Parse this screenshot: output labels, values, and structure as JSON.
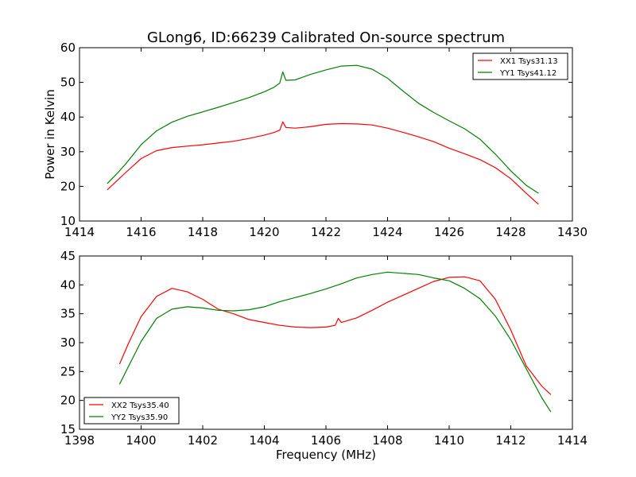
{
  "figure": {
    "title": "GLong6, ID:66239 Calibrated On-source spectrum",
    "ylabel": "Power in Kelvin",
    "xlabel": "Frequency (MHz)"
  },
  "colors": {
    "red": "#ff0000",
    "green": "#008000"
  },
  "chart_data": [
    {
      "type": "line",
      "title": "GLong6, ID:66239 Calibrated On-source spectrum",
      "xlabel": "",
      "ylabel": "Power in Kelvin",
      "xlim": [
        1414,
        1430
      ],
      "ylim": [
        10,
        60
      ],
      "xticks": [
        1414,
        1416,
        1418,
        1420,
        1422,
        1424,
        1426,
        1428,
        1430
      ],
      "yticks": [
        10,
        20,
        30,
        40,
        50,
        60
      ],
      "grid": false,
      "legend_position": "top-right",
      "series": [
        {
          "name": "XX1 Tsys31.13",
          "color": "#ff0000",
          "x": [
            1414.9,
            1415.2,
            1415.5,
            1416.0,
            1416.5,
            1417.0,
            1417.5,
            1418.0,
            1418.5,
            1419.0,
            1419.5,
            1420.0,
            1420.3,
            1420.5,
            1420.6,
            1420.7,
            1421.0,
            1421.5,
            1422.0,
            1422.5,
            1423.0,
            1423.5,
            1424.0,
            1424.5,
            1425.0,
            1425.5,
            1426.0,
            1426.5,
            1427.0,
            1427.5,
            1428.0,
            1428.5,
            1428.9
          ],
          "y": [
            19.0,
            21.5,
            24.0,
            28.0,
            30.3,
            31.2,
            31.6,
            32.0,
            32.5,
            33.0,
            33.8,
            34.8,
            35.5,
            36.2,
            38.6,
            37.0,
            36.8,
            37.2,
            37.9,
            38.1,
            38.0,
            37.7,
            36.8,
            35.6,
            34.3,
            32.9,
            31.0,
            29.4,
            27.7,
            25.4,
            22.2,
            18.0,
            14.8
          ]
        },
        {
          "name": "YY1 Tsys41.12",
          "color": "#008000",
          "x": [
            1414.9,
            1415.2,
            1415.5,
            1416.0,
            1416.5,
            1417.0,
            1417.5,
            1418.0,
            1418.5,
            1419.0,
            1419.5,
            1420.0,
            1420.3,
            1420.5,
            1420.6,
            1420.7,
            1421.0,
            1421.5,
            1422.0,
            1422.5,
            1423.0,
            1423.5,
            1424.0,
            1424.5,
            1425.0,
            1425.5,
            1426.0,
            1426.5,
            1427.0,
            1427.5,
            1428.0,
            1428.5,
            1428.9
          ],
          "y": [
            20.8,
            23.5,
            26.5,
            32.0,
            36.0,
            38.5,
            40.2,
            41.5,
            42.8,
            44.2,
            45.6,
            47.3,
            48.5,
            49.8,
            53.0,
            50.6,
            50.7,
            52.3,
            53.6,
            54.7,
            54.9,
            53.8,
            51.2,
            47.5,
            44.0,
            41.3,
            38.9,
            36.6,
            33.6,
            29.3,
            24.5,
            20.3,
            18.0
          ]
        }
      ]
    },
    {
      "type": "line",
      "title": "",
      "xlabel": "Frequency (MHz)",
      "ylabel": "",
      "xlim": [
        1398,
        1414
      ],
      "ylim": [
        15,
        45
      ],
      "xticks": [
        1398,
        1400,
        1402,
        1404,
        1406,
        1408,
        1410,
        1412,
        1414
      ],
      "yticks": [
        15,
        20,
        25,
        30,
        35,
        40,
        45
      ],
      "grid": false,
      "legend_position": "lower-left",
      "series": [
        {
          "name": "XX2 Tsys35.40",
          "color": "#ff0000",
          "x": [
            1399.3,
            1399.6,
            1400.0,
            1400.5,
            1401.0,
            1401.5,
            1402.0,
            1402.5,
            1403.0,
            1403.5,
            1404.0,
            1404.5,
            1405.0,
            1405.5,
            1406.0,
            1406.3,
            1406.4,
            1406.5,
            1407.0,
            1407.5,
            1408.0,
            1408.5,
            1409.0,
            1409.5,
            1410.0,
            1410.5,
            1411.0,
            1411.5,
            1412.0,
            1412.5,
            1413.0,
            1413.3
          ],
          "y": [
            26.3,
            30.0,
            34.5,
            38.0,
            39.4,
            38.8,
            37.5,
            35.8,
            35.0,
            34.0,
            33.5,
            33.0,
            32.7,
            32.6,
            32.7,
            33.0,
            34.2,
            33.5,
            34.3,
            35.6,
            37.0,
            38.2,
            39.4,
            40.6,
            41.3,
            41.4,
            40.7,
            37.5,
            32.2,
            26.0,
            22.5,
            21.0
          ]
        },
        {
          "name": "YY2 Tsys35.90",
          "color": "#008000",
          "x": [
            1399.3,
            1399.6,
            1400.0,
            1400.5,
            1401.0,
            1401.5,
            1402.0,
            1402.5,
            1403.0,
            1403.5,
            1404.0,
            1404.5,
            1405.0,
            1405.5,
            1406.0,
            1406.5,
            1407.0,
            1407.5,
            1408.0,
            1408.5,
            1409.0,
            1409.5,
            1410.0,
            1410.5,
            1411.0,
            1411.5,
            1412.0,
            1412.5,
            1413.0,
            1413.3
          ],
          "y": [
            22.8,
            26.0,
            30.2,
            34.2,
            35.8,
            36.2,
            36.0,
            35.6,
            35.5,
            35.7,
            36.2,
            37.1,
            37.8,
            38.5,
            39.3,
            40.2,
            41.2,
            41.8,
            42.2,
            42.0,
            41.8,
            41.2,
            40.7,
            39.4,
            37.6,
            34.6,
            30.5,
            25.5,
            20.5,
            18.0
          ]
        }
      ]
    }
  ]
}
